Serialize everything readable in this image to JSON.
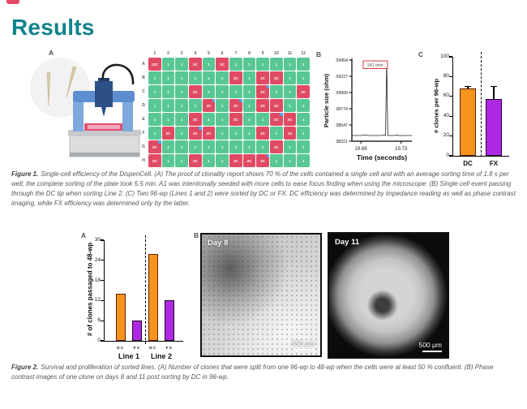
{
  "accent_color": "#0f838a",
  "header": {
    "title": "Results"
  },
  "figure1": {
    "panel_labels": {
      "a": "A",
      "b": "B",
      "c": "C"
    },
    "plate": {
      "col_headers": [
        "1",
        "2",
        "3",
        "4",
        "5",
        "6",
        "7",
        "8",
        "9",
        "10",
        "11",
        "12"
      ],
      "rows": [
        {
          "label": "A",
          "cells": [
            "12C",
            "1",
            "1",
            "2C",
            "1",
            "2C",
            "1",
            "1",
            "1",
            "1",
            "1",
            "1"
          ]
        },
        {
          "label": "B",
          "cells": [
            "1",
            "1",
            "1",
            "1",
            "1",
            "1",
            "2C",
            "1",
            "2C",
            "2C",
            "1",
            "1"
          ]
        },
        {
          "label": "C",
          "cells": [
            "1",
            "1",
            "1",
            "2C",
            "1",
            "1",
            "1",
            "1",
            "2C",
            "1",
            "1",
            "2C"
          ]
        },
        {
          "label": "D",
          "cells": [
            "1",
            "1",
            "1",
            "1",
            "2C",
            "1",
            "2C",
            "1",
            "2C",
            "2C",
            "1",
            "1"
          ]
        },
        {
          "label": "E",
          "cells": [
            "1",
            "1",
            "1",
            "2C",
            "1",
            "1",
            "2C",
            "1",
            "1",
            "2C",
            "2C",
            "1"
          ]
        },
        {
          "label": "F",
          "cells": [
            "1",
            "2C",
            "1",
            "2C",
            "2C",
            "1",
            "1",
            "1",
            "2C",
            "1",
            "14",
            "1"
          ]
        },
        {
          "label": "G",
          "cells": [
            "2C",
            "1",
            "1",
            "1",
            "1",
            "1",
            "1",
            "1",
            "1",
            "2C",
            "1",
            "1"
          ]
        },
        {
          "label": "H",
          "cells": [
            "2C",
            "1",
            "1",
            "2C",
            "1",
            "1",
            "2C",
            "2C",
            "2C",
            "1",
            "1",
            "1"
          ]
        }
      ],
      "marker_cells": [
        "C9",
        "D5",
        "D7",
        "E10",
        "F4",
        "G1",
        "H9"
      ],
      "colors": {
        "single_cell": "#58c794",
        "multi_cell": "#e04a63",
        "marker": "#4da6e8"
      }
    }
  },
  "figure2": {
    "panel_labels": {
      "a": "A",
      "b": "B"
    },
    "microscopy": [
      {
        "label": "Day 8",
        "scale_bar": "150 μm"
      },
      {
        "label": "Day 11",
        "scale_bar": "500 μm"
      }
    ]
  },
  "captions": {
    "figure1": {
      "label": "Figure 1.",
      "text": "Single-cell efficiency of the DispenCell. (A) The proof of clonality report shows 70 % of the cells contained a single cell and with an average sorting time of 1.8 s per well, the complete sorting of the plate took 5.5 min. A1 was intentionally seeded with more cells to ease focus finding when using the microscope. (B) Single cell event passing through the DC tip when sorting Line 2. (C) Two 96-wp (Lines 1 and 2) were sorted by DC or FX. DC efficiency was determined by impedance reading as well as phase contrast imaging, while FX efficiency was determined only by the latter."
    },
    "figure2": {
      "label": "Figure 2.",
      "text": "Survival and proliferation of sorted lines. (A) Number of clones that were split from one 96-wp to 48-wp when the cells were at least 50 % confluent. (B) Phase contrast images of one clone on days 8 and 11 post sorting by DC in 96-wp."
    }
  },
  "chart_data": [
    {
      "id": "single-cell-event-trace",
      "type": "line",
      "ylabel": "Particle size (ohm)",
      "xlabel": "Time (seconds)",
      "yticks": [
        38321,
        38547,
        38774,
        39000,
        39227,
        39454
      ],
      "ylim": [
        38321,
        39454
      ],
      "xticks": [
        "19.69",
        "19.73"
      ],
      "baseline_y": 38400,
      "peak": {
        "x_frac": 0.58,
        "y": 39454,
        "label": "941 ohm"
      },
      "annotation_color": "#d93a3a",
      "legend_position": "none",
      "grid": false
    },
    {
      "id": "clones-per-96wp",
      "type": "bar",
      "ylabel": "# clones per 96-wp",
      "categories": [
        "DC",
        "FX"
      ],
      "values": [
        68,
        57
      ],
      "errors_plus": [
        2,
        13
      ],
      "bar_colors": [
        "#f6921e",
        "#ad29e3"
      ],
      "bar_edge_colors": [
        "#5a2300",
        "#25002e"
      ],
      "yticks": [
        0,
        20,
        40,
        60,
        80,
        100
      ],
      "ylim": [
        0,
        100
      ],
      "separator": "dashed",
      "grid": false
    },
    {
      "id": "clones-passaged-48wp",
      "type": "bar",
      "ylabel": "# of clones passaged to 48-wp",
      "groups": [
        "Line 1",
        "Line 2"
      ],
      "categories": [
        "DC",
        "FX"
      ],
      "series": [
        {
          "name": "DC",
          "values": [
            14,
            26
          ]
        },
        {
          "name": "FX",
          "values": [
            6,
            12
          ]
        }
      ],
      "bar_colors": {
        "DC": "#f6921e",
        "FX": "#ad29e3"
      },
      "bar_edge_colors": {
        "DC": "#5a2300",
        "FX": "#25002e"
      },
      "yticks": [
        0,
        6,
        12,
        18,
        24,
        30
      ],
      "ylim": [
        0,
        30
      ],
      "separator": "dashed",
      "grid": false
    }
  ]
}
